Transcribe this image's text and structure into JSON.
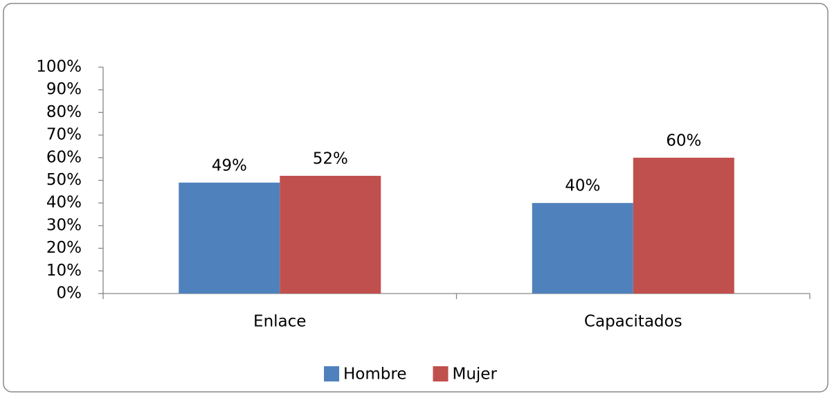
{
  "chart_data": {
    "type": "bar",
    "categories": [
      "Enlace",
      "Capacitados"
    ],
    "series": [
      {
        "name": "Hombre",
        "color": "#4f81bd",
        "values": [
          49,
          40
        ],
        "value_labels": [
          "49%",
          "40%"
        ]
      },
      {
        "name": "Mujer",
        "color": "#c0504d",
        "values": [
          52,
          60
        ],
        "value_labels": [
          "52%",
          "60%"
        ]
      }
    ],
    "ylim": [
      0,
      100
    ],
    "yticks": [
      {
        "value": 0,
        "label": "0%"
      },
      {
        "value": 10,
        "label": "10%"
      },
      {
        "value": 20,
        "label": "20%"
      },
      {
        "value": 30,
        "label": "30%"
      },
      {
        "value": 40,
        "label": "40%"
      },
      {
        "value": 50,
        "label": "50%"
      },
      {
        "value": 60,
        "label": "60%"
      },
      {
        "value": 70,
        "label": "70%"
      },
      {
        "value": 80,
        "label": "80%"
      },
      {
        "value": 90,
        "label": "90%"
      },
      {
        "value": 100,
        "label": "100%"
      }
    ],
    "grid": false,
    "legend": "bottom"
  }
}
